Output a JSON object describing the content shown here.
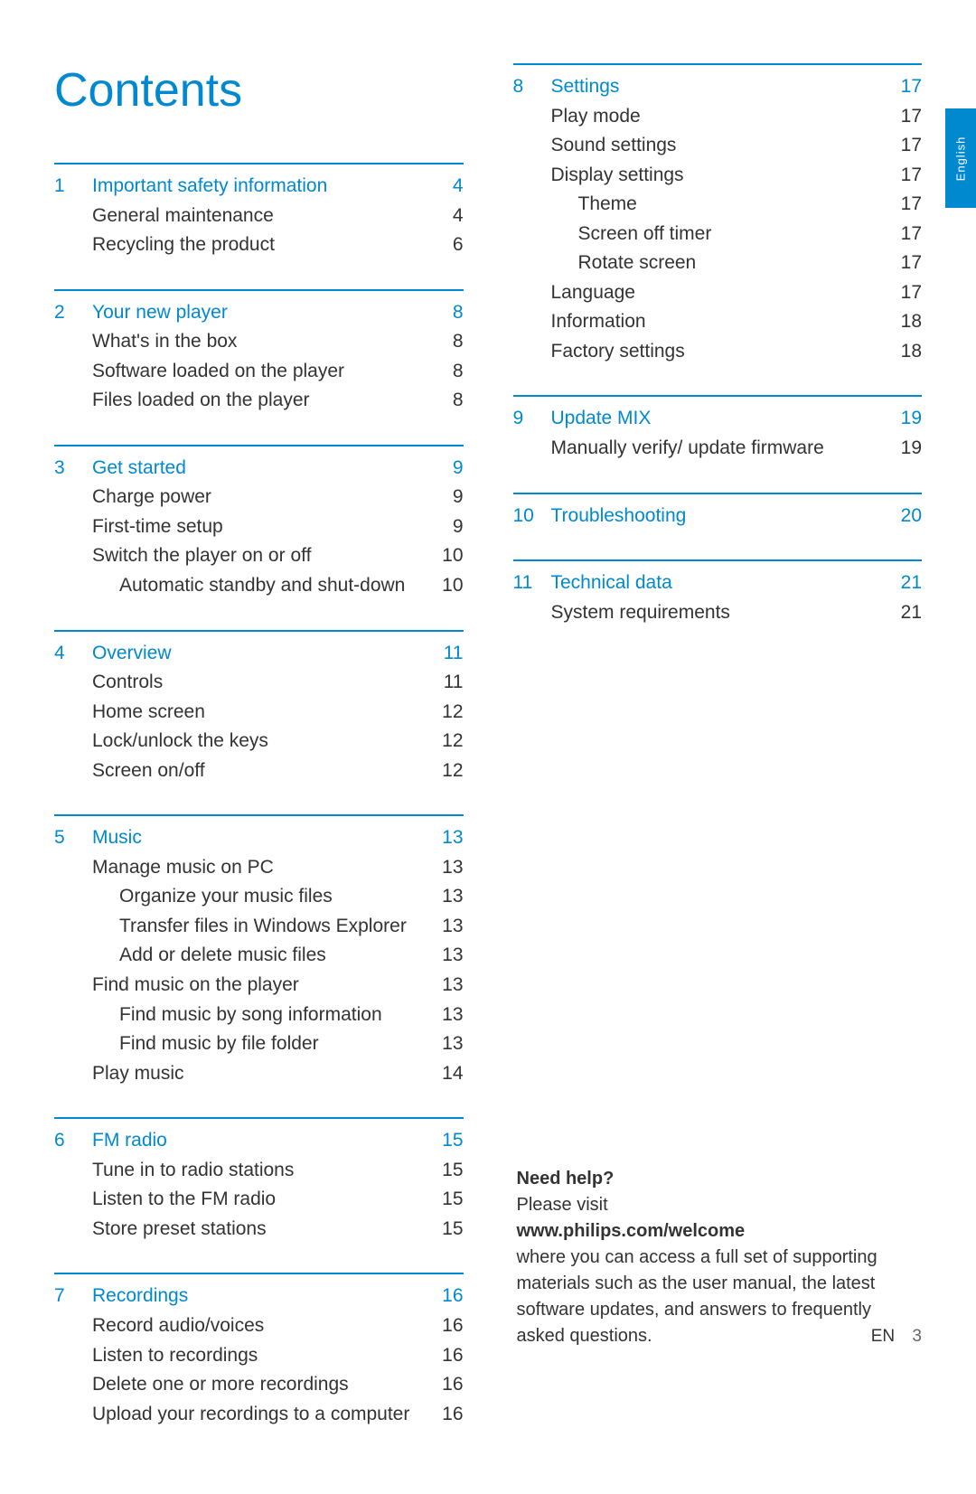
{
  "title": "Contents",
  "accent_color": "#0089cf",
  "text_color": "#333333",
  "left_sections": [
    {
      "num": "1",
      "head": "Important safety information",
      "page": "4",
      "items": [
        {
          "label": "General maintenance",
          "page": "4",
          "indent": 1
        },
        {
          "label": "Recycling the product",
          "page": "6",
          "indent": 1
        }
      ]
    },
    {
      "num": "2",
      "head": "Your new player",
      "page": "8",
      "items": [
        {
          "label": "What's in the box",
          "page": "8",
          "indent": 1
        },
        {
          "label": "Software loaded on the player",
          "page": "8",
          "indent": 1
        },
        {
          "label": "Files loaded on the player",
          "page": "8",
          "indent": 1
        }
      ]
    },
    {
      "num": "3",
      "head": "Get started",
      "page": "9",
      "items": [
        {
          "label": "Charge power",
          "page": "9",
          "indent": 1
        },
        {
          "label": "First-time setup",
          "page": "9",
          "indent": 1
        },
        {
          "label": "Switch the player on or off",
          "page": "10",
          "indent": 1
        },
        {
          "label": "Automatic standby and shut-down",
          "page": "10",
          "indent": 2
        }
      ]
    },
    {
      "num": "4",
      "head": "Overview",
      "page": "11",
      "items": [
        {
          "label": "Controls",
          "page": "11",
          "indent": 1
        },
        {
          "label": "Home screen",
          "page": "12",
          "indent": 1
        },
        {
          "label": "Lock/unlock the keys",
          "page": "12",
          "indent": 1
        },
        {
          "label": "Screen on/off",
          "page": "12",
          "indent": 1
        }
      ]
    },
    {
      "num": "5",
      "head": "Music",
      "page": "13",
      "items": [
        {
          "label": "Manage music on PC",
          "page": "13",
          "indent": 1
        },
        {
          "label": "Organize your music files",
          "page": "13",
          "indent": 2
        },
        {
          "label": "Transfer files in Windows Explorer",
          "page": "13",
          "indent": 2
        },
        {
          "label": "Add or delete music files",
          "page": "13",
          "indent": 2
        },
        {
          "label": "Find music on the player",
          "page": "13",
          "indent": 1
        },
        {
          "label": "Find music by song information",
          "page": "13",
          "indent": 2
        },
        {
          "label": "Find music by file folder",
          "page": "13",
          "indent": 2
        },
        {
          "label": "Play music",
          "page": "14",
          "indent": 1
        }
      ]
    },
    {
      "num": "6",
      "head": "FM radio",
      "page": "15",
      "items": [
        {
          "label": "Tune in to radio stations",
          "page": "15",
          "indent": 1
        },
        {
          "label": "Listen to the FM radio",
          "page": "15",
          "indent": 1
        },
        {
          "label": "Store preset stations",
          "page": "15",
          "indent": 1
        }
      ]
    },
    {
      "num": "7",
      "head": "Recordings",
      "page": "16",
      "items": [
        {
          "label": "Record audio/voices",
          "page": "16",
          "indent": 1
        },
        {
          "label": "Listen to recordings",
          "page": "16",
          "indent": 1
        },
        {
          "label": "Delete one or more recordings",
          "page": "16",
          "indent": 1
        },
        {
          "label": "Upload your recordings to a computer",
          "page": "16",
          "indent": 1
        }
      ]
    }
  ],
  "right_sections": [
    {
      "num": "8",
      "head": "Settings",
      "page": "17",
      "items": [
        {
          "label": "Play mode",
          "page": "17",
          "indent": 1
        },
        {
          "label": "Sound settings",
          "page": "17",
          "indent": 1
        },
        {
          "label": "Display settings",
          "page": "17",
          "indent": 1
        },
        {
          "label": "Theme",
          "page": "17",
          "indent": 2
        },
        {
          "label": "Screen off timer",
          "page": "17",
          "indent": 2
        },
        {
          "label": "Rotate screen",
          "page": "17",
          "indent": 2
        },
        {
          "label": "Language",
          "page": "17",
          "indent": 1
        },
        {
          "label": "Information",
          "page": "18",
          "indent": 1
        },
        {
          "label": "Factory settings",
          "page": "18",
          "indent": 1
        }
      ]
    },
    {
      "num": "9",
      "head": "Update MIX",
      "page": "19",
      "items": [
        {
          "label": "Manually verify/ update firmware",
          "page": "19",
          "indent": 1
        }
      ]
    },
    {
      "num": "10",
      "head": "Troubleshooting",
      "page": "20",
      "items": []
    },
    {
      "num": "11",
      "head": "Technical data",
      "page": "21",
      "items": [
        {
          "label": "System requirements",
          "page": "21",
          "indent": 1
        }
      ]
    }
  ],
  "help": {
    "title": "Need help?",
    "line1": "Please visit",
    "url": "www.philips.com/welcome",
    "body": "where you can access a full set of supporting materials such as the user manual, the latest software updates, and answers to frequently asked questions."
  },
  "footer": {
    "lang": "EN",
    "page": "3"
  },
  "side_tab": "English"
}
